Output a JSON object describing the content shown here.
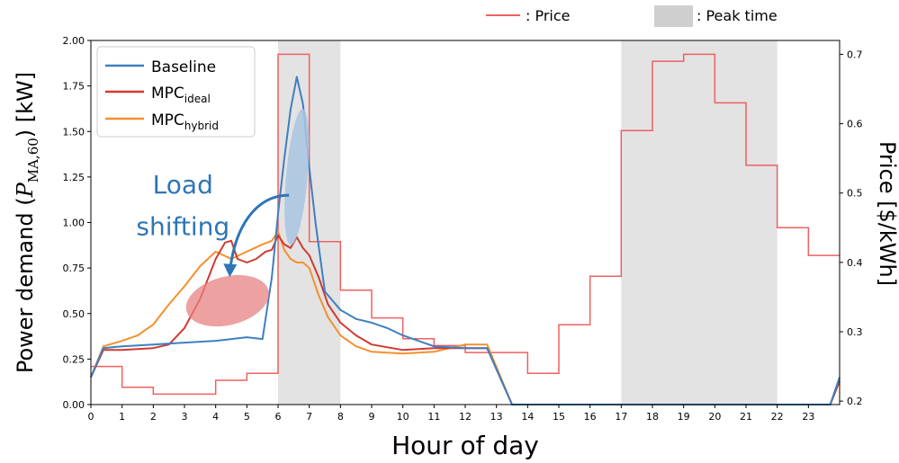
{
  "chart_data": {
    "type": "line",
    "xlabel": "Hour of day",
    "ylabel_left": "Power demand (P_MA,60) [kW]",
    "ylabel_left_parts": {
      "prefix": "Power demand (",
      "var": "P",
      "sub": "MA,60",
      "suffix": ") [kW]"
    },
    "ylabel_right": "Price [$/kWh]",
    "xlim": [
      0,
      24
    ],
    "ylim_left": [
      0,
      2.0
    ],
    "ylim_right": [
      0.195,
      0.72
    ],
    "x_ticks": [
      0,
      1,
      2,
      3,
      4,
      5,
      6,
      7,
      8,
      9,
      10,
      11,
      12,
      13,
      14,
      15,
      16,
      17,
      18,
      19,
      20,
      21,
      22,
      23
    ],
    "y_ticks_left": [
      "0.00",
      "0.25",
      "0.50",
      "0.75",
      "1.00",
      "1.25",
      "1.50",
      "1.75",
      "2.00"
    ],
    "y_ticks_right": [
      "0.2",
      "0.3",
      "0.4",
      "0.5",
      "0.6",
      "0.7"
    ],
    "peak_periods": [
      [
        6,
        8
      ],
      [
        17,
        22
      ]
    ],
    "top_legend": {
      "price": ": Price",
      "peak": ": Peak time"
    },
    "legend": [
      {
        "base": "Baseline",
        "sub": ""
      },
      {
        "base": "MPC",
        "sub": "ideal"
      },
      {
        "base": "MPC",
        "sub": "hybrid"
      }
    ],
    "annotation": {
      "line1": "Load",
      "line2": "shifting"
    },
    "colors": {
      "baseline": "#3f7fbf",
      "mpc_ideal": "#d03a2f",
      "mpc_hybrid": "#f5902e",
      "price": "#f06060",
      "peak": "#e3e3e3",
      "annotation": "#2e75b6",
      "ellipse_red": "#e78282",
      "ellipse_blue": "#a9c4e2"
    },
    "price": {
      "hours": [
        0,
        1,
        2,
        3,
        4,
        5,
        6,
        7,
        8,
        9,
        10,
        11,
        12,
        13,
        14,
        15,
        16,
        17,
        18,
        19,
        20,
        21,
        22,
        23
      ],
      "values": [
        0.25,
        0.22,
        0.21,
        0.21,
        0.23,
        0.24,
        0.7,
        0.43,
        0.36,
        0.32,
        0.29,
        0.28,
        0.27,
        0.27,
        0.24,
        0.31,
        0.38,
        0.59,
        0.69,
        0.7,
        0.63,
        0.54,
        0.45,
        0.41
      ]
    },
    "series": [
      {
        "name": "Baseline",
        "x": [
          0,
          0.4,
          1,
          2,
          3,
          4,
          5,
          5.5,
          5.8,
          6,
          6.2,
          6.4,
          6.6,
          6.8,
          7,
          7.2,
          7.5,
          8,
          8.5,
          9,
          9.5,
          10,
          11,
          12,
          12.7,
          13.5,
          23.7,
          24
        ],
        "y": [
          0.15,
          0.31,
          0.32,
          0.33,
          0.34,
          0.35,
          0.37,
          0.36,
          0.7,
          1.05,
          1.35,
          1.62,
          1.8,
          1.65,
          1.3,
          1.0,
          0.62,
          0.52,
          0.47,
          0.45,
          0.42,
          0.38,
          0.32,
          0.31,
          0.31,
          0.0,
          0.0,
          0.15
        ]
      },
      {
        "name": "MPC_ideal",
        "x": [
          0,
          0.4,
          1,
          2,
          2.5,
          3,
          3.5,
          4,
          4.3,
          4.5,
          4.7,
          5,
          5.3,
          5.6,
          5.8,
          6,
          6.2,
          6.4,
          6.6,
          6.8,
          7,
          7.3,
          7.6,
          8,
          8.5,
          9,
          10,
          11,
          12,
          12.7,
          13.5,
          23.7,
          24
        ],
        "y": [
          0.15,
          0.3,
          0.3,
          0.31,
          0.33,
          0.42,
          0.58,
          0.8,
          0.89,
          0.9,
          0.8,
          0.78,
          0.8,
          0.84,
          0.85,
          0.93,
          0.88,
          0.86,
          0.92,
          0.86,
          0.82,
          0.7,
          0.55,
          0.45,
          0.38,
          0.33,
          0.3,
          0.31,
          0.31,
          0.31,
          0.0,
          0.0,
          0.13
        ]
      },
      {
        "name": "MPC_hybrid",
        "x": [
          0,
          0.4,
          1,
          1.5,
          2,
          2.5,
          3,
          3.5,
          4,
          4.5,
          5,
          5.5,
          5.8,
          6,
          6.2,
          6.4,
          6.6,
          6.8,
          7,
          7.3,
          7.6,
          8,
          8.5,
          9,
          10,
          11,
          12,
          12.7,
          13.5,
          23.7,
          24
        ],
        "y": [
          0.15,
          0.32,
          0.35,
          0.38,
          0.44,
          0.55,
          0.65,
          0.76,
          0.84,
          0.8,
          0.84,
          0.88,
          0.9,
          0.95,
          0.85,
          0.8,
          0.78,
          0.78,
          0.75,
          0.6,
          0.48,
          0.38,
          0.32,
          0.29,
          0.28,
          0.29,
          0.33,
          0.33,
          0.0,
          0.0,
          0.13
        ]
      }
    ]
  }
}
